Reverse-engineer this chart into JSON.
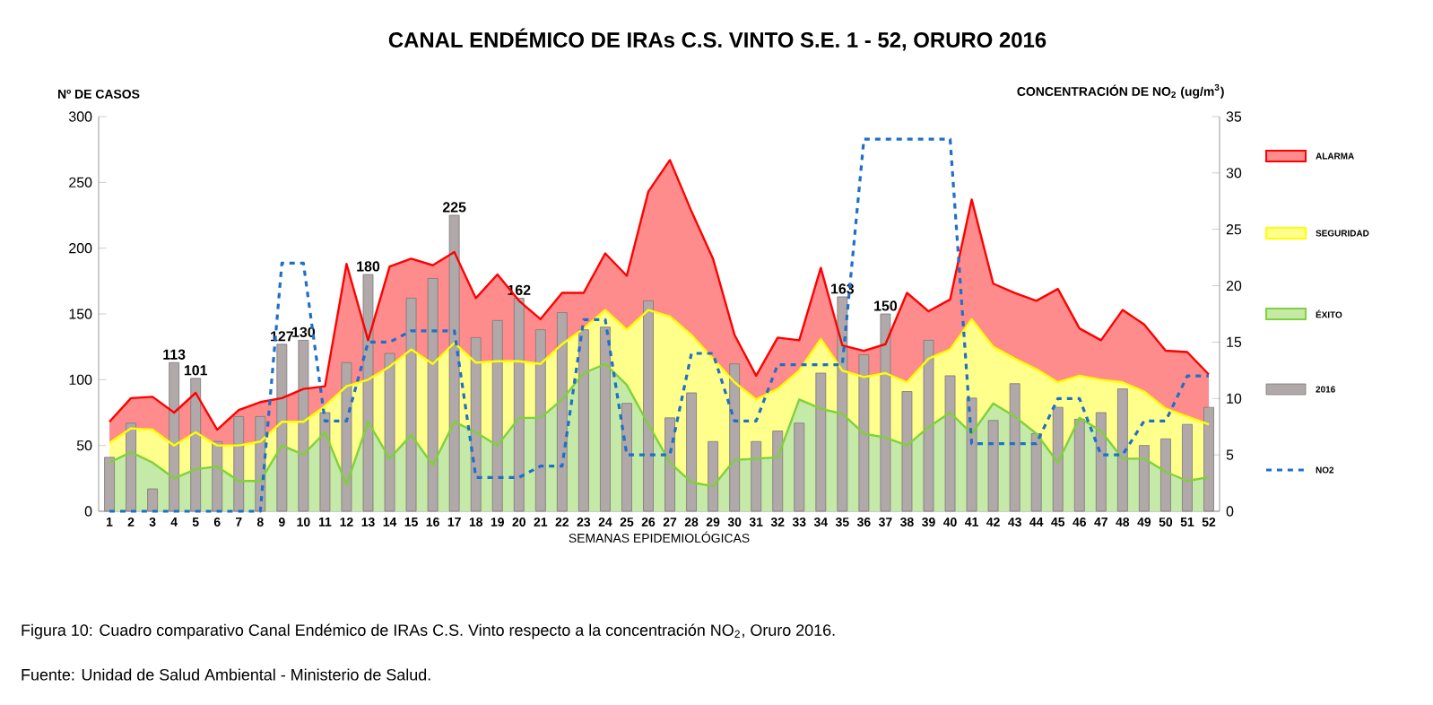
{
  "chart_data": {
    "type": "bar",
    "title": "CANAL ENDÉMICO DE IRAs C.S. VINTO S.E. 1 - 52,  ORURO 2016",
    "xlabel": "SEMANAS EPIDEMIOLÓGICAS",
    "ylabel": "Nº DE CASOS",
    "y2label": "CONCENTRACIÓN DE NO$_{2}$ (ug/m$^{3}$)",
    "categories": [
      "1",
      "2",
      "3",
      "4",
      "5",
      "6",
      "7",
      "8",
      "9",
      "10",
      "11",
      "12",
      "13",
      "14",
      "15",
      "16",
      "17",
      "18",
      "19",
      "20",
      "21",
      "22",
      "23",
      "24",
      "25",
      "26",
      "27",
      "28",
      "29",
      "30",
      "31",
      "32",
      "33",
      "34",
      "35",
      "36",
      "37",
      "38",
      "39",
      "40",
      "41",
      "42",
      "43",
      "44",
      "45",
      "46",
      "47",
      "48",
      "49",
      "50",
      "51",
      "52"
    ],
    "series": [
      {
        "name": "ALARMA",
        "type": "area",
        "color": "#ff0000",
        "values": [
          68,
          86,
          87,
          75,
          90,
          62,
          77,
          83,
          86,
          93,
          95,
          188,
          130,
          186,
          192,
          187,
          197,
          162,
          180,
          160,
          146,
          166,
          166,
          196,
          179,
          243,
          267,
          228,
          192,
          134,
          103,
          132,
          130,
          185,
          126,
          122,
          127,
          166,
          152,
          161,
          237,
          173,
          166,
          160,
          169,
          139,
          130,
          153,
          142,
          122,
          121,
          104
        ]
      },
      {
        "name": "SEGURIDAD",
        "type": "area",
        "color": "#ffff00",
        "values": [
          52,
          63,
          62,
          50,
          60,
          50,
          50,
          53,
          68,
          68,
          80,
          95,
          100,
          110,
          123,
          112,
          128,
          113,
          114,
          114,
          112,
          127,
          139,
          153,
          138,
          153,
          148,
          134,
          116,
          98,
          85,
          93,
          107,
          131,
          107,
          102,
          105,
          98,
          116,
          123,
          146,
          125,
          116,
          108,
          98,
          103,
          100,
          98,
          91,
          78,
          72,
          66
        ]
      },
      {
        "name": "ÉXITO",
        "type": "area",
        "color": "#7fd13b",
        "values": [
          37,
          45,
          37,
          25,
          32,
          34,
          23,
          23,
          50,
          43,
          60,
          20,
          68,
          40,
          58,
          35,
          68,
          60,
          50,
          71,
          71,
          85,
          105,
          112,
          96,
          66,
          37,
          22,
          19,
          39,
          40,
          41,
          85,
          78,
          74,
          59,
          56,
          50,
          64,
          75,
          59,
          82,
          72,
          59,
          37,
          71,
          61,
          40,
          40,
          30,
          23,
          26
        ]
      },
      {
        "name": "2016",
        "color": "#b1a9a9",
        "values": [
          41,
          67,
          17,
          113,
          101,
          53,
          72,
          72,
          127,
          130,
          75,
          113,
          180,
          120,
          162,
          177,
          225,
          132,
          145,
          162,
          138,
          151,
          138,
          140,
          82,
          160,
          71,
          90,
          53,
          112,
          53,
          61,
          67,
          105,
          163,
          119,
          150,
          91,
          130,
          103,
          86,
          69,
          97,
          59,
          79,
          70,
          75,
          93,
          50,
          55,
          66,
          79
        ],
        "value_labels": [
          null,
          null,
          null,
          "113",
          "101",
          null,
          null,
          null,
          "127",
          "130",
          null,
          null,
          "180",
          null,
          null,
          null,
          "225",
          null,
          null,
          "162",
          null,
          null,
          null,
          null,
          null,
          null,
          null,
          null,
          null,
          null,
          null,
          null,
          null,
          null,
          "163",
          null,
          "150",
          null,
          null,
          null,
          null,
          null,
          null,
          null,
          null,
          null,
          null,
          null,
          null,
          null,
          null,
          null
        ]
      },
      {
        "name": "NO2",
        "type": "line",
        "axis": "y2",
        "color": "#1f6fc8",
        "line_style": "dashed",
        "values": [
          0,
          0,
          0,
          0,
          0,
          0,
          0,
          0,
          22,
          22,
          8,
          8,
          15,
          15,
          16,
          16,
          16,
          3,
          3,
          3,
          4,
          4,
          17,
          17,
          5,
          5,
          5,
          14,
          14,
          8,
          8,
          13,
          13,
          13,
          13,
          33,
          33,
          33,
          33,
          33,
          6,
          6,
          6,
          6,
          10,
          10,
          5,
          5,
          8,
          8,
          12,
          12
        ]
      }
    ],
    "ylim": [
      0,
      300
    ],
    "yticks": [
      0,
      50,
      100,
      150,
      200,
      250,
      300
    ],
    "y2lim": [
      0,
      35
    ],
    "y2ticks": [
      0,
      5,
      10,
      15,
      20,
      25,
      30,
      35
    ],
    "legend": "right",
    "annotations": [
      "Figura 10: Cuadro comparativo Canal Endémico de IRAs C.S. Vinto respecto a la concentración NO$_{2}$, Oruro 2016.",
      "Fuente: Unidad de Salud Ambiental - Ministerio de Salud."
    ]
  }
}
